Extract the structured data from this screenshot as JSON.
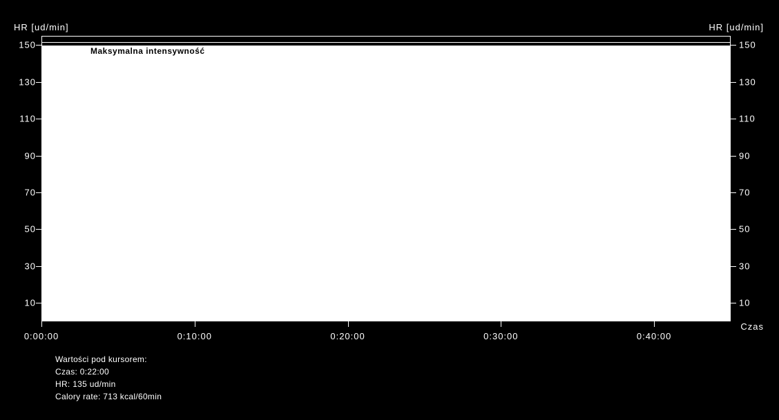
{
  "chart": {
    "type": "line-hr",
    "background_color": "#000000",
    "fill_color": "#ffffff",
    "axis_color": "#ffffff",
    "text_color": "#ffffff",
    "y_axis": {
      "title": "HR [ud/min]",
      "min": 0,
      "max": 155,
      "ticks": [
        10,
        30,
        50,
        70,
        90,
        110,
        130,
        150
      ]
    },
    "x_axis": {
      "title": "Czas",
      "min_seconds": 0,
      "max_seconds": 2700,
      "ticks": [
        "0:00:00",
        "0:10:00",
        "0:20:00",
        "0:30:00",
        "0:40:00"
      ],
      "tick_seconds": [
        0,
        600,
        1200,
        1800,
        2400
      ]
    },
    "threshold": {
      "value": 152,
      "label": "Maksymalna intensywność"
    },
    "series_top_value": 150
  },
  "cursor": {
    "heading": "Wartości pod kursorem:",
    "time_label": "Czas: 0:22:00",
    "hr_label": "HR: 135 ud/min",
    "calory_label": "Calory rate: 713 kcal/60min"
  }
}
